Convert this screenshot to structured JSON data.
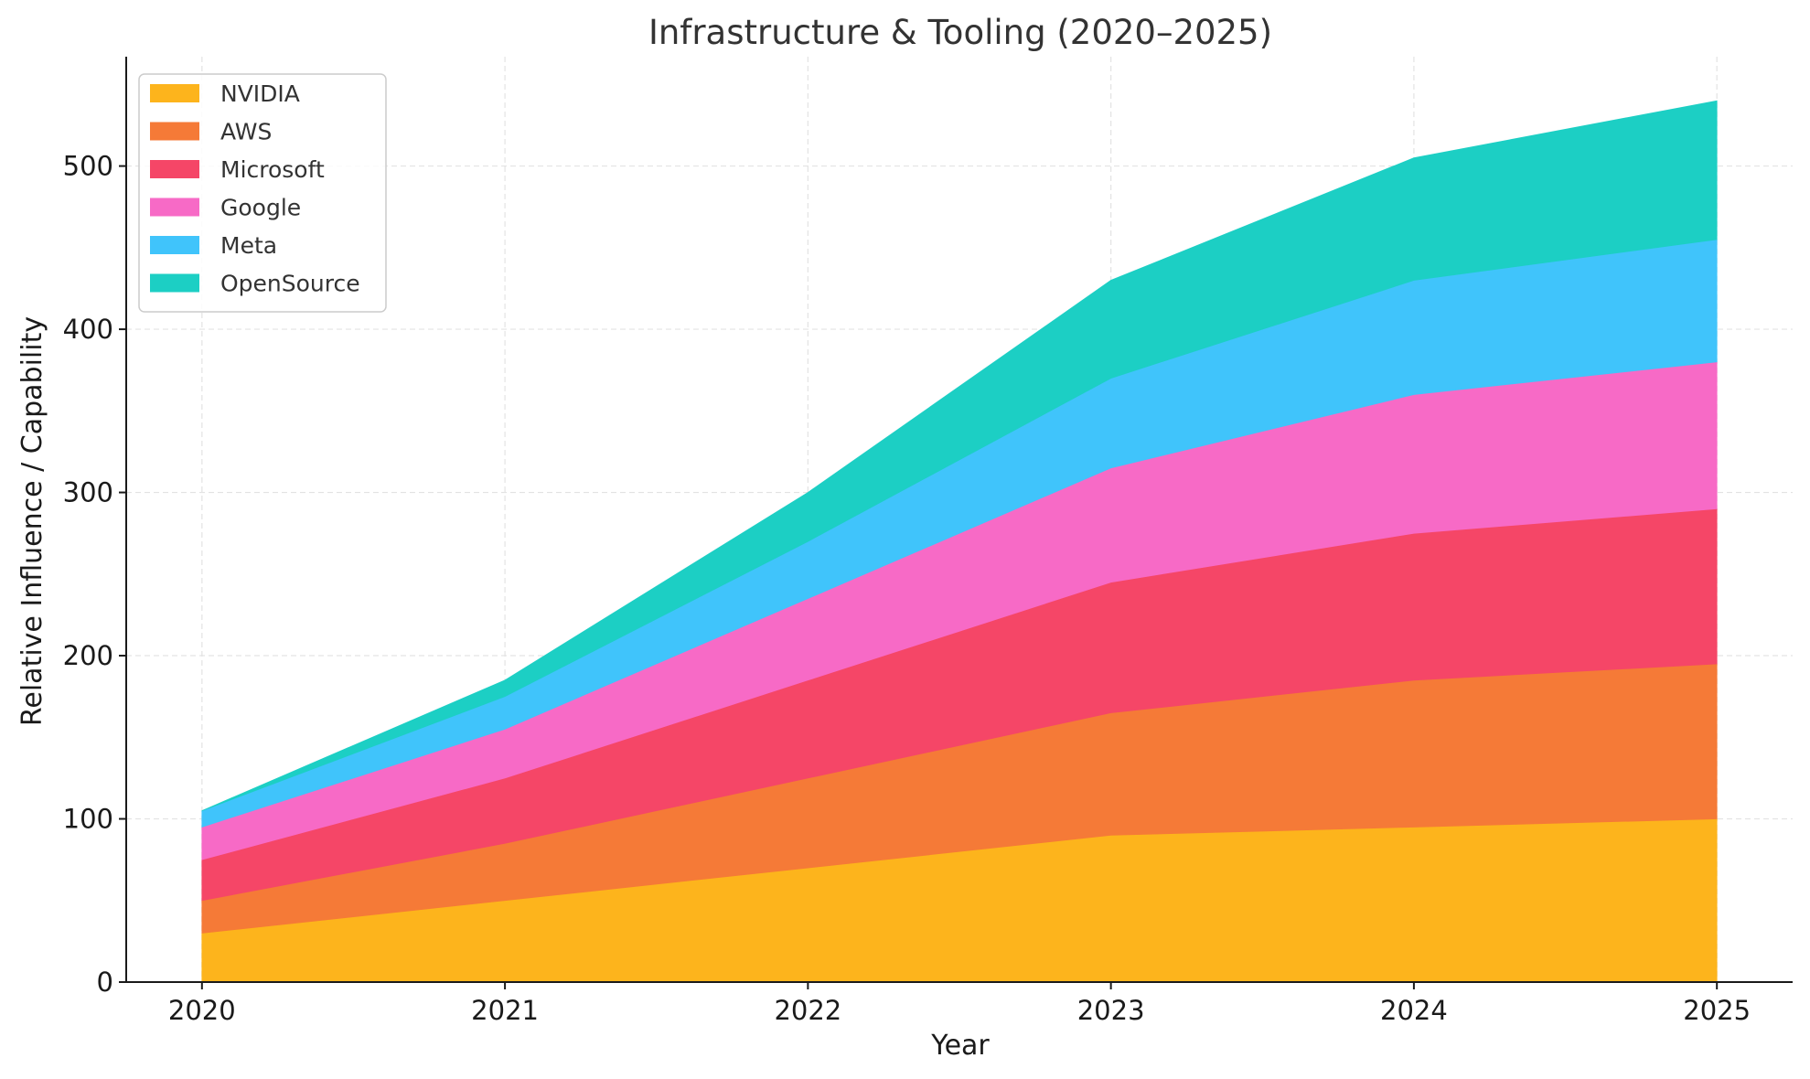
{
  "chart_data": {
    "type": "area",
    "stacked": true,
    "title": "Infrastructure & Tooling (2020–2025)",
    "xlabel": "Year",
    "ylabel": "Relative Influence / Capability",
    "x": [
      2020,
      2021,
      2022,
      2023,
      2024,
      2025
    ],
    "x_tick_labels": [
      "2020",
      "2021",
      "2022",
      "2023",
      "2024",
      "2025"
    ],
    "xlim": [
      2019.75,
      2025.25
    ],
    "ylim": [
      0,
      567
    ],
    "y_ticks": [
      0,
      100,
      200,
      300,
      400,
      500
    ],
    "y_tick_labels": [
      "0",
      "100",
      "200",
      "300",
      "400",
      "500"
    ],
    "grid": true,
    "legend_position": "top-left",
    "series": [
      {
        "name": "NVIDIA",
        "color": "#fdb41c",
        "values": [
          30,
          50,
          70,
          90,
          95,
          100
        ]
      },
      {
        "name": "AWS",
        "color": "#f57a37",
        "values": [
          20,
          35,
          55,
          75,
          90,
          95
        ]
      },
      {
        "name": "Microsoft",
        "color": "#f54667",
        "values": [
          25,
          40,
          60,
          80,
          90,
          95
        ]
      },
      {
        "name": "Google",
        "color": "#f76ac6",
        "values": [
          20,
          30,
          50,
          70,
          85,
          90
        ]
      },
      {
        "name": "Meta",
        "color": "#40c4fb",
        "values": [
          10,
          20,
          35,
          55,
          70,
          75
        ]
      },
      {
        "name": "OpenSource",
        "color": "#1ccfc4",
        "values": [
          0,
          10,
          30,
          60,
          75,
          85
        ]
      }
    ]
  }
}
